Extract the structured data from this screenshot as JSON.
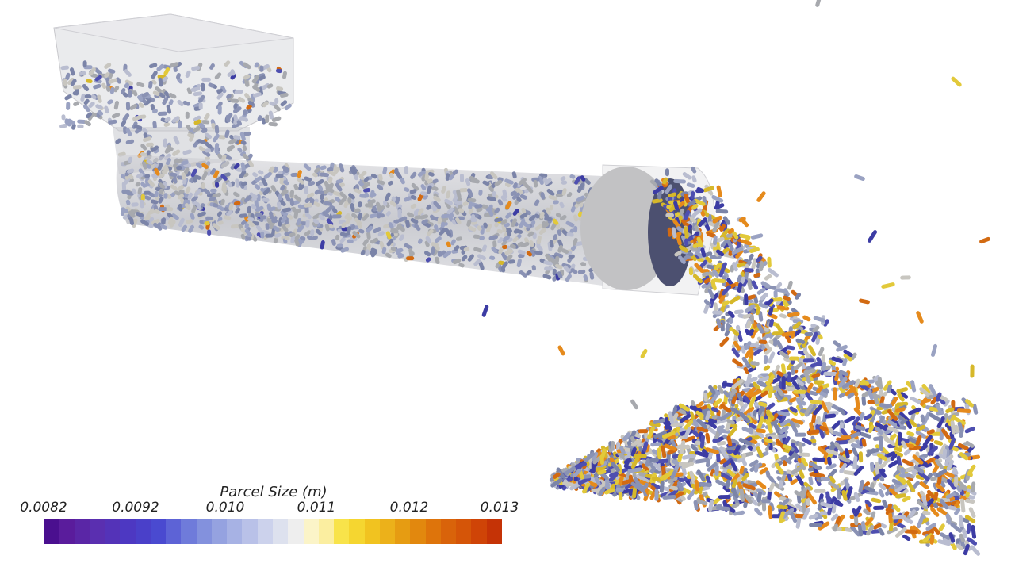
{
  "legend": {
    "title": "Parcel Size (m)",
    "ticks": [
      "0.0082",
      "0.0092",
      "0.010",
      "0.011",
      "0.012",
      "0.013"
    ],
    "colors": [
      "#4a0f8f",
      "#5a1c9c",
      "#5a26a6",
      "#5a2fb0",
      "#5433b8",
      "#4d38c2",
      "#4a40c9",
      "#4a4ad0",
      "#5d63d6",
      "#6f7bda",
      "#8391dd",
      "#95a2e0",
      "#a7b2e4",
      "#b9c1e8",
      "#ccd2ec",
      "#dde1ee",
      "#eeeeee",
      "#fbf4c8",
      "#fbeea0",
      "#f8e34a",
      "#f5d630",
      "#f1c320",
      "#ecb11a",
      "#e69c12",
      "#e2880e",
      "#de740b",
      "#d9630a",
      "#d55508",
      "#cf4407",
      "#c53306"
    ]
  },
  "scene": {
    "particle_colors": [
      "#8a92b4",
      "#7b84a8",
      "#9aa2c2",
      "#a7a9ae",
      "#c8c6c0",
      "#4e4fb0",
      "#3c3ca4",
      "#e2c93a",
      "#d6b82a",
      "#e58a1c",
      "#d26a12",
      "#b9bdd0"
    ]
  }
}
